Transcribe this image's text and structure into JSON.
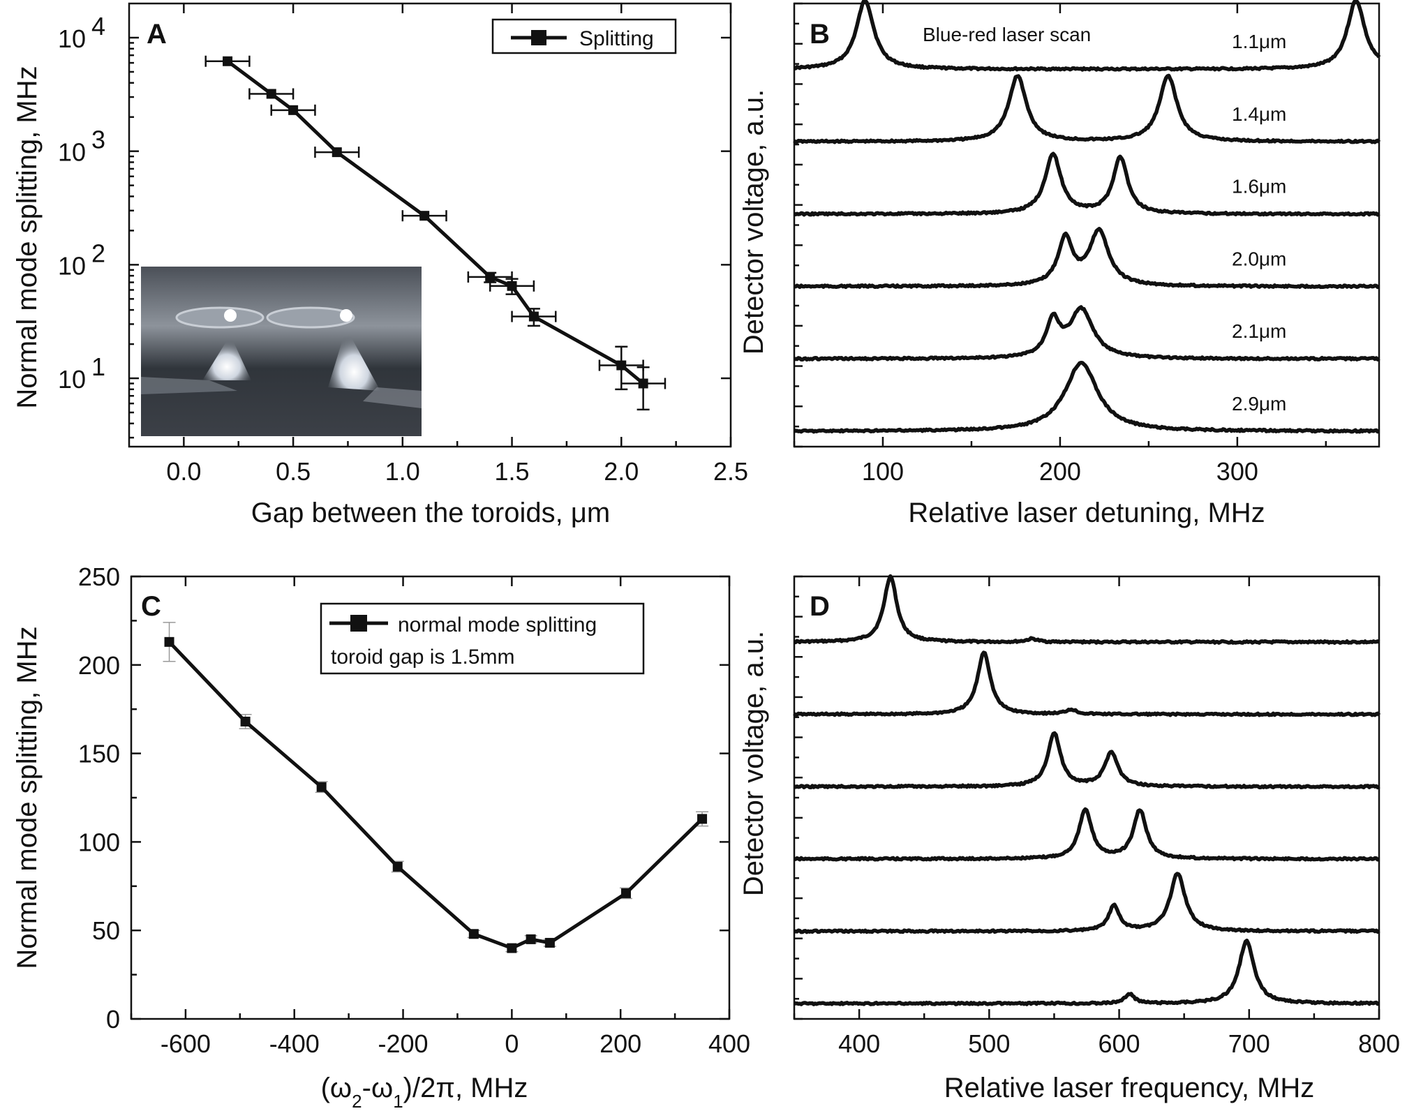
{
  "colors": {
    "ink": "#111111",
    "background": "#ffffff"
  },
  "chart_data": [
    {
      "panel": "A",
      "type": "line",
      "xlabel": "Gap between the toroids, μm",
      "ylabel": "Normal mode splitting, MHz",
      "xlim": [
        -0.25,
        2.5
      ],
      "ylim": [
        2.5,
        20000
      ],
      "yscale": "log",
      "x_ticks": [
        0.0,
        0.5,
        1.0,
        1.5,
        2.0,
        2.5
      ],
      "x_tick_labels": [
        "0.0",
        "0.5",
        "1.0",
        "1.5",
        "2.0",
        "2.5"
      ],
      "y_ticks": [
        10,
        100,
        1000,
        10000
      ],
      "y_tick_labels": [
        {
          "base": "10",
          "exp": "1"
        },
        {
          "base": "10",
          "exp": "2"
        },
        {
          "base": "10",
          "exp": "3"
        },
        {
          "base": "10",
          "exp": "4"
        }
      ],
      "legend": {
        "entries": [
          "Splitting"
        ],
        "position": "top-right"
      },
      "inset_photo": true,
      "series": [
        {
          "name": "Splitting",
          "x": [
            0.2,
            0.4,
            0.5,
            0.7,
            1.1,
            1.4,
            1.5,
            1.6,
            2.0,
            2.1
          ],
          "y": [
            6200,
            3200,
            2300,
            980,
            270,
            78,
            65,
            35,
            13,
            9
          ],
          "x_err": [
            0.1,
            0.1,
            0.1,
            0.1,
            0.1,
            0.1,
            0.1,
            0.1,
            0.1,
            0.1
          ],
          "y_err_low": [
            6200,
            3200,
            2300,
            980,
            270,
            70,
            55,
            29,
            8,
            5.3
          ],
          "y_err_high": [
            6200,
            3200,
            2300,
            980,
            270,
            85,
            75,
            41,
            19,
            12.5
          ]
        }
      ]
    },
    {
      "panel": "B",
      "type": "line",
      "xlabel": "Relative laser detuning, MHz",
      "ylabel": "Detector voltage, a.u.",
      "xlim": [
        50,
        380
      ],
      "x_ticks": [
        100,
        200,
        300
      ],
      "x_tick_labels": [
        "100",
        "200",
        "300"
      ],
      "annotation": "Blue-red laser scan",
      "series": [
        {
          "name": "1.1μm",
          "baseline": 6,
          "peaks": [
            [
              90,
              4.4,
              6
            ],
            [
              367,
              4.4,
              6
            ]
          ]
        },
        {
          "name": "1.4μm",
          "baseline": 5,
          "peaks": [
            [
              176,
              4.2,
              6
            ],
            [
              261,
              4.2,
              6
            ]
          ]
        },
        {
          "name": "1.6μm",
          "baseline": 4,
          "peaks": [
            [
              196,
              3.8,
              5.5
            ],
            [
              234,
              3.6,
              5
            ]
          ]
        },
        {
          "name": "2.0μm",
          "baseline": 3,
          "peaks": [
            [
              203,
              3.0,
              5
            ],
            [
              222,
              3.5,
              6.5
            ]
          ]
        },
        {
          "name": "2.1μm",
          "baseline": 2,
          "peaks": [
            [
              196,
              2.3,
              4.5
            ],
            [
              212,
              3.1,
              8
            ]
          ]
        },
        {
          "name": "2.9μm",
          "baseline": 1,
          "peaks": [
            [
              212,
              4.4,
              11
            ]
          ]
        }
      ]
    },
    {
      "panel": "C",
      "type": "line",
      "xlabel": "(ω₂-ω₁)/2π, MHz",
      "ylabel": "Normal mode splitting, MHz",
      "xlim": [
        -700,
        400
      ],
      "ylim": [
        0,
        250
      ],
      "x_ticks": [
        -600,
        -400,
        -200,
        0,
        200,
        400
      ],
      "x_tick_labels": [
        "-600",
        "-400",
        "-200",
        "0",
        "200",
        "400"
      ],
      "y_ticks": [
        0,
        50,
        100,
        150,
        200,
        250
      ],
      "y_tick_labels": [
        "0",
        "50",
        "100",
        "150",
        "200",
        "250"
      ],
      "legend": {
        "entries": [
          "normal mode splitting"
        ],
        "note": "toroid gap is 1.5mm",
        "position": "top"
      },
      "series": [
        {
          "name": "normal mode splitting",
          "x": [
            -630,
            -490,
            -350,
            -210,
            -70,
            0,
            35,
            70,
            210,
            350
          ],
          "y": [
            213,
            168,
            131,
            86,
            48,
            40,
            45,
            43,
            71,
            113
          ],
          "y_err": [
            11,
            4,
            3,
            3,
            2,
            2,
            2,
            2,
            3,
            4
          ]
        }
      ]
    },
    {
      "panel": "D",
      "type": "line",
      "xlabel": "Relative laser frequency, MHz",
      "ylabel": "Detector voltage, a.u.",
      "xlim": [
        350,
        800
      ],
      "x_ticks": [
        400,
        500,
        600,
        700,
        800
      ],
      "x_tick_labels": [
        "400",
        "500",
        "600",
        "700",
        "800"
      ],
      "series": [
        {
          "baseline": 6,
          "peaks": [
            [
              424,
              4.2,
              6
            ],
            [
              533,
              0.2,
              5
            ]
          ]
        },
        {
          "baseline": 5,
          "peaks": [
            [
              496,
              4.0,
              6
            ],
            [
              563,
              0.3,
              5
            ]
          ]
        },
        {
          "baseline": 4,
          "peaks": [
            [
              550,
              3.4,
              6
            ],
            [
              594,
              2.2,
              6
            ]
          ]
        },
        {
          "baseline": 3,
          "peaks": [
            [
              574,
              3.1,
              6
            ],
            [
              616,
              3.1,
              6
            ]
          ]
        },
        {
          "baseline": 2,
          "peaks": [
            [
              596,
              1.6,
              5
            ],
            [
              645,
              3.7,
              7
            ]
          ]
        },
        {
          "baseline": 1,
          "peaks": [
            [
              608,
              0.6,
              4.5
            ],
            [
              698,
              4.0,
              7
            ]
          ]
        }
      ]
    }
  ]
}
